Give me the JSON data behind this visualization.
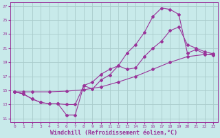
{
  "background_color": "#c8eaea",
  "grid_color": "#aacccc",
  "line_color": "#993399",
  "xlabel": "Windchill (Refroidissement éolien,°C)",
  "xlabel_fontsize": 6,
  "ylabel_ticks": [
    11,
    13,
    15,
    17,
    19,
    21,
    23,
    25,
    27
  ],
  "xlabel_ticks": [
    0,
    1,
    2,
    3,
    4,
    5,
    6,
    7,
    8,
    9,
    10,
    11,
    12,
    13,
    14,
    15,
    16,
    17,
    18,
    19,
    20,
    21,
    22,
    23
  ],
  "xlim": [
    -0.5,
    23.5
  ],
  "ylim": [
    10.5,
    27.5
  ],
  "series1_x": [
    0,
    1,
    2,
    4,
    6,
    8,
    10,
    12,
    14,
    16,
    18,
    20,
    22,
    23
  ],
  "series1_y": [
    14.8,
    14.8,
    14.8,
    14.8,
    14.9,
    15.1,
    15.5,
    16.2,
    17.0,
    18.0,
    19.0,
    19.8,
    20.1,
    20.2
  ],
  "series2_x": [
    0,
    1,
    2,
    3,
    4,
    5,
    6,
    7,
    8,
    9,
    10,
    11,
    12,
    13,
    14,
    15,
    16,
    17,
    18,
    19,
    20,
    21,
    22,
    23
  ],
  "series2_y": [
    14.8,
    14.5,
    13.8,
    13.3,
    13.1,
    13.1,
    13.0,
    13.0,
    15.7,
    16.2,
    17.3,
    18.0,
    18.5,
    18.0,
    18.2,
    19.8,
    21.0,
    22.0,
    23.5,
    24.0,
    21.5,
    21.0,
    20.5,
    20.2
  ],
  "series3_x": [
    0,
    1,
    2,
    3,
    4,
    5,
    6,
    7,
    8,
    9,
    10,
    11,
    12,
    13,
    14,
    15,
    16,
    17,
    18,
    19,
    20,
    21,
    22,
    23
  ],
  "series3_y": [
    14.8,
    14.5,
    13.8,
    13.3,
    13.1,
    13.1,
    11.5,
    11.5,
    15.7,
    15.2,
    16.5,
    17.2,
    18.5,
    20.3,
    21.5,
    23.2,
    25.5,
    26.7,
    26.5,
    25.8,
    20.3,
    20.8,
    20.2,
    20.0
  ],
  "marker_style": "D",
  "marker_size": 2.0,
  "line_width": 0.8
}
